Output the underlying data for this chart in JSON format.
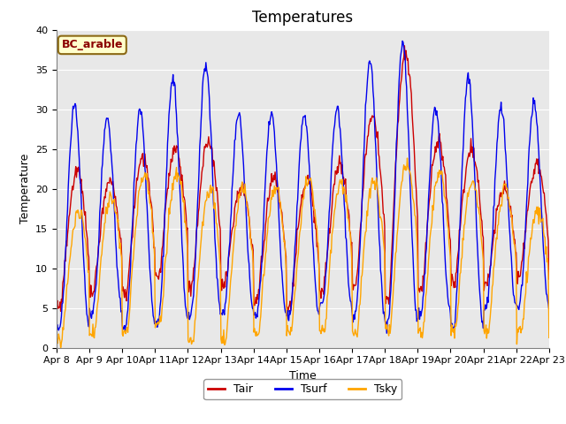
{
  "title": "Temperatures",
  "xlabel": "Time",
  "ylabel": "Temperature",
  "ylim": [
    0,
    40
  ],
  "n_days": 15,
  "tick_labels": [
    "Apr 8",
    "Apr 9",
    "Apr 10",
    "Apr 11",
    "Apr 12",
    "Apr 13",
    "Apr 14",
    "Apr 15",
    "Apr 16",
    "Apr 17",
    "Apr 18",
    "Apr 19",
    "Apr 20",
    "Apr 21",
    "Apr 22",
    "Apr 23"
  ],
  "line_colors": {
    "Tair": "#cc0000",
    "Tsurf": "#0000ee",
    "Tsky": "#ffa500"
  },
  "legend_title": "BC_arable",
  "legend_title_color": "#8b0000",
  "legend_box_facecolor": "#ffffcc",
  "legend_box_edgecolor": "#8b6914",
  "bg_color": "#e8e8e8",
  "grid_color": "white",
  "title_fontsize": 12,
  "label_fontsize": 9,
  "tick_fontsize": 8
}
